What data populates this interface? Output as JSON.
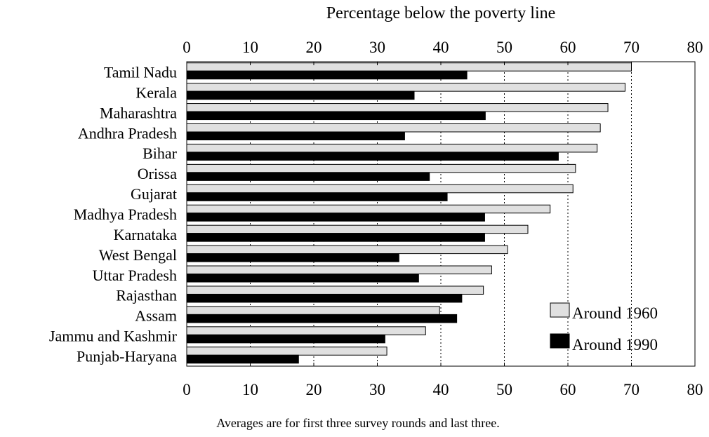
{
  "chart_data": {
    "type": "bar",
    "orientation": "horizontal",
    "title": "",
    "xlabel": "Percentage below the poverty line",
    "ylabel": "",
    "xlim": [
      0,
      80
    ],
    "xticks": [
      0,
      10,
      20,
      30,
      40,
      50,
      60,
      70,
      80
    ],
    "grid": true,
    "legend_position": "bottom-right",
    "categories": [
      "Tamil Nadu",
      "Kerala",
      "Maharashtra",
      "Andhra Pradesh",
      "Bihar",
      "Orissa",
      "Gujarat",
      "Madhya Pradesh",
      "Karnataka",
      "West Bengal",
      "Uttar Pradesh",
      "Rajasthan",
      "Assam",
      "Jammu and Kashmir",
      "Punjab-Haryana"
    ],
    "series": [
      {
        "name": "Around 1960",
        "color": "#e0e0e0",
        "values": [
          70.0,
          69.0,
          66.3,
          65.1,
          64.6,
          61.2,
          60.8,
          57.2,
          53.7,
          50.5,
          48.0,
          46.7,
          39.8,
          37.6,
          31.5
        ]
      },
      {
        "name": "Around 1990",
        "color": "#000000",
        "values": [
          44.1,
          35.8,
          47.0,
          34.3,
          58.5,
          38.2,
          41.0,
          46.9,
          46.9,
          33.4,
          36.5,
          43.3,
          42.5,
          31.2,
          17.6
        ]
      }
    ],
    "caption": "Averages are for first three survey rounds and last three."
  }
}
